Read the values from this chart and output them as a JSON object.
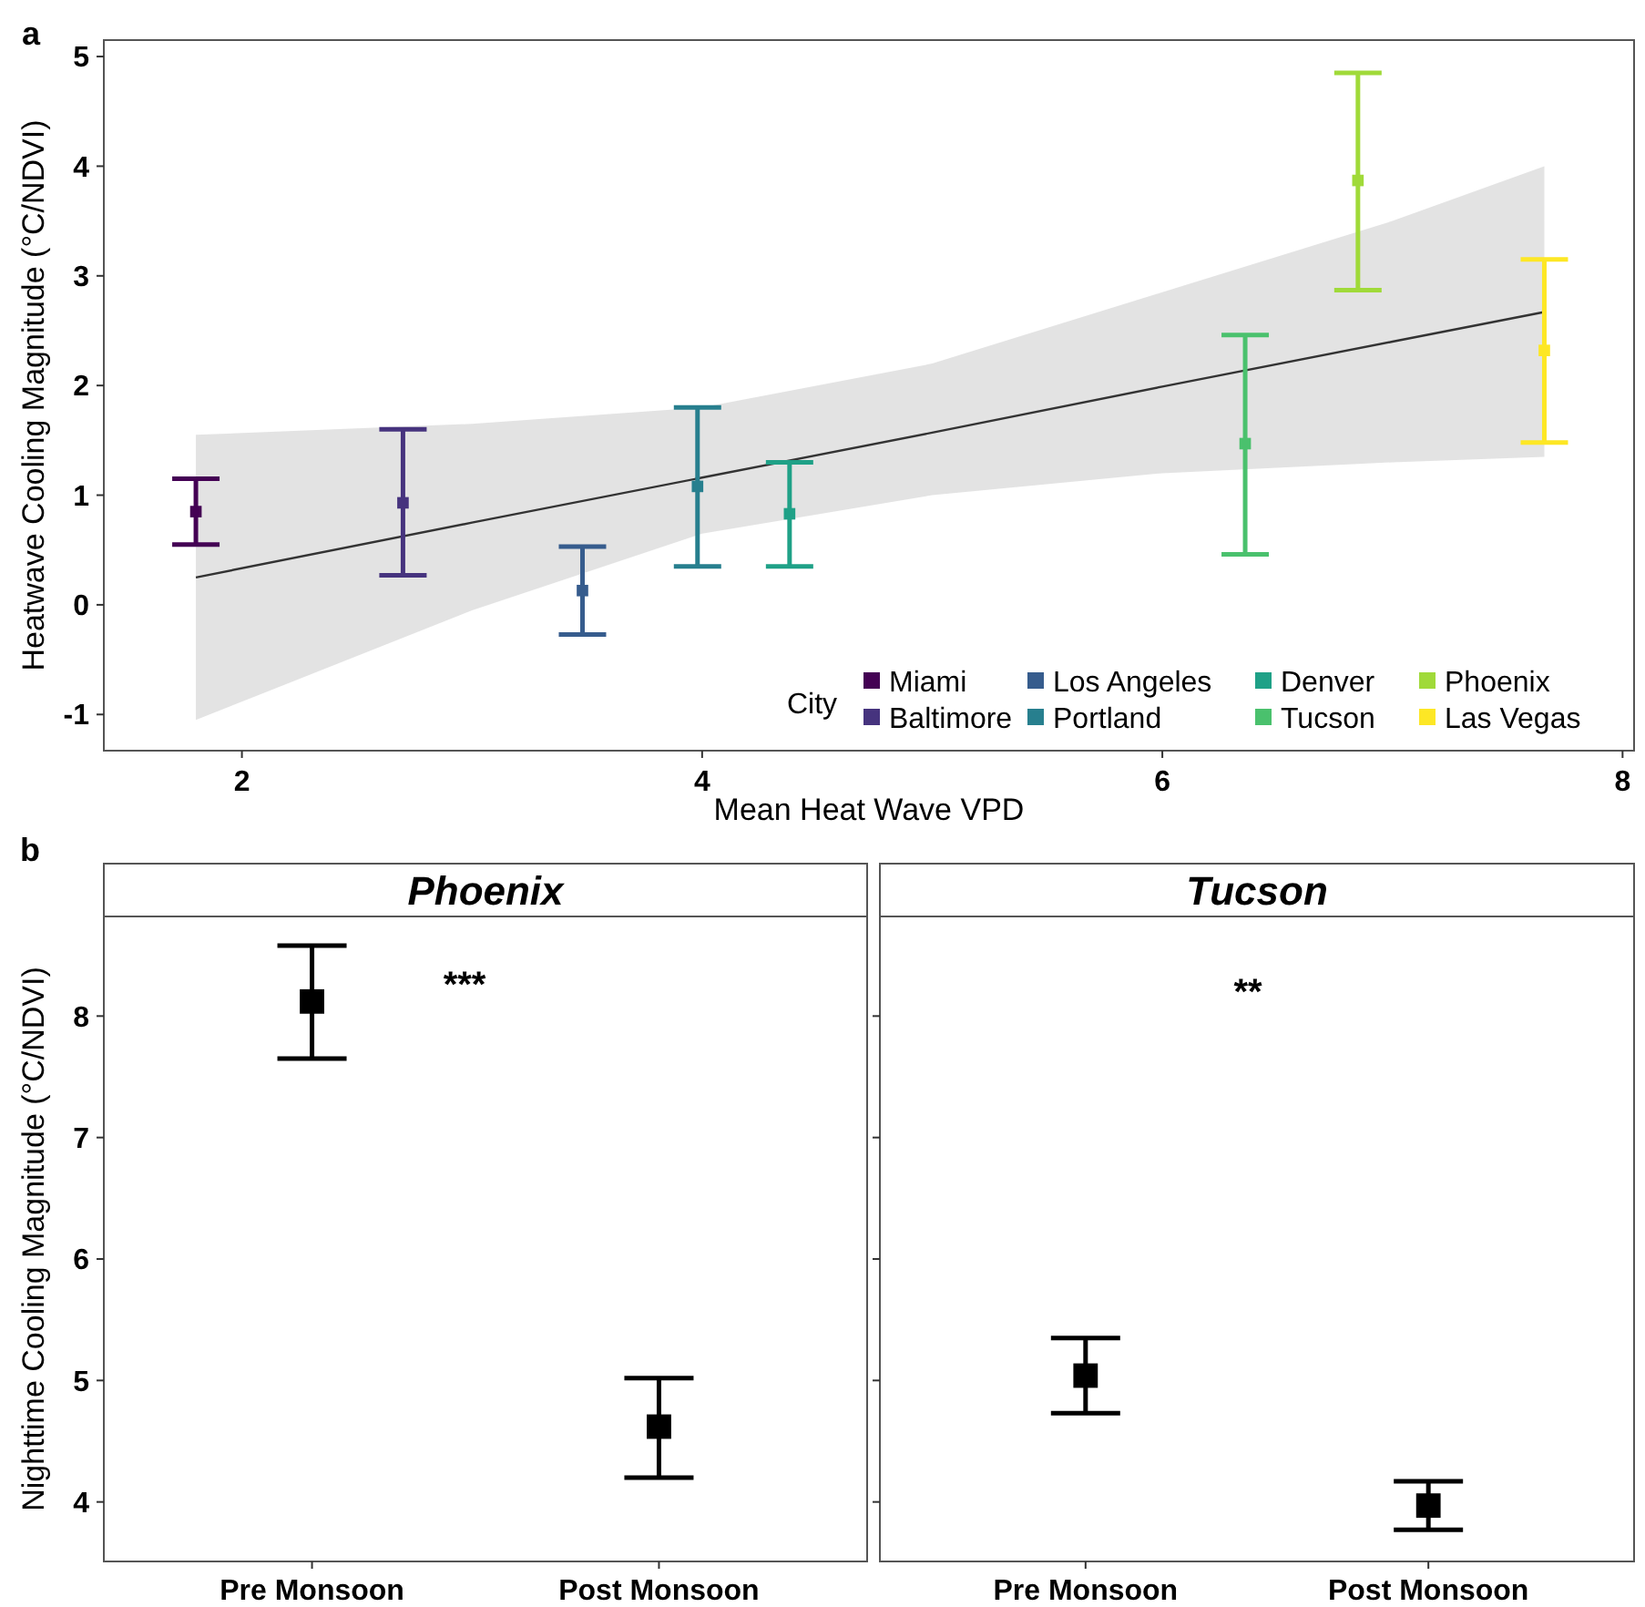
{
  "chart_data": [
    {
      "type": "scatter",
      "xlabel": "Mean Heat Wave VPD",
      "ylabel": "Heatwave Cooling Magnitude (°C/NDVI)",
      "annotations": [
        "a"
      ],
      "legend_title": "City",
      "legend": "bottom right",
      "marker": "square",
      "grid": false,
      "xlim": [
        1.4,
        8.05
      ],
      "ylim": [
        -1.33,
        5.15
      ],
      "xticks": [
        2,
        4,
        6,
        8
      ],
      "yticks": [
        -1,
        0,
        1,
        2,
        3,
        4,
        5
      ],
      "series": [
        {
          "type": "line",
          "marker": "none",
          "color": "#333333",
          "x": [
            1.8,
            3,
            4,
            5,
            6,
            7,
            7.66
          ],
          "values": [
            0.25,
            0.75,
            1.16,
            1.57,
            1.99,
            2.4,
            2.67
          ],
          "lower": [
            -1.05,
            -0.05,
            0.65,
            1.0,
            1.2,
            1.3,
            1.35
          ],
          "upper": [
            1.55,
            1.65,
            1.8,
            2.2,
            2.85,
            3.5,
            4.0
          ]
        },
        {
          "name": "Miami",
          "color": "#440154",
          "x": [
            1.8
          ],
          "values": [
            0.85
          ],
          "errors": [
            [
              0.55,
              1.15
            ]
          ]
        },
        {
          "name": "Baltimore",
          "color": "#46337e",
          "x": [
            2.7
          ],
          "values": [
            0.93
          ],
          "errors": [
            [
              0.27,
              1.6
            ]
          ]
        },
        {
          "name": "Los Angeles",
          "color": "#365c8d",
          "x": [
            3.48
          ],
          "values": [
            0.13
          ],
          "errors": [
            [
              -0.27,
              0.53
            ]
          ]
        },
        {
          "name": "Portland",
          "color": "#277f8e",
          "x": [
            3.98
          ],
          "values": [
            1.08
          ],
          "errors": [
            [
              0.35,
              1.8
            ]
          ]
        },
        {
          "name": "Denver",
          "color": "#1fa187",
          "x": [
            4.38
          ],
          "values": [
            0.83
          ],
          "errors": [
            [
              0.35,
              1.3
            ]
          ]
        },
        {
          "name": "Tucson",
          "color": "#4ac16d",
          "x": [
            6.36
          ],
          "values": [
            1.47
          ],
          "errors": [
            [
              0.46,
              2.46
            ]
          ]
        },
        {
          "name": "Phoenix",
          "color": "#a0da39",
          "x": [
            6.85
          ],
          "values": [
            3.87
          ],
          "errors": [
            [
              2.87,
              4.85
            ]
          ]
        },
        {
          "name": "Las Vegas",
          "color": "#fde725",
          "x": [
            7.66
          ],
          "values": [
            2.32
          ],
          "errors": [
            [
              1.48,
              3.15
            ]
          ]
        }
      ]
    },
    {
      "type": "scatter",
      "title": "Phoenix",
      "ylabel": "Nighttime Cooling Magnitude (°C/NDVI)",
      "annotations": [
        "b",
        "***"
      ],
      "marker": "square",
      "grid": false,
      "categories": [
        "Pre Monsoon",
        "Post Monsoon"
      ],
      "ylim": [
        3.51,
        8.82
      ],
      "yticks": [
        4,
        5,
        6,
        7,
        8
      ],
      "series": [
        {
          "color": "#000000",
          "values": [
            8.12,
            4.62
          ],
          "errors": [
            [
              7.65,
              8.58
            ],
            [
              4.2,
              5.02
            ]
          ]
        }
      ]
    },
    {
      "type": "scatter",
      "title": "Tucson",
      "annotations": [
        "**"
      ],
      "marker": "square",
      "grid": false,
      "tick_labels": "x",
      "categories": [
        "Pre Monsoon",
        "Post Monsoon"
      ],
      "ylim": [
        3.51,
        8.82
      ],
      "yticks": [
        4,
        5,
        6,
        7,
        8
      ],
      "series": [
        {
          "color": "#000000",
          "values": [
            5.04,
            3.97
          ],
          "errors": [
            [
              4.73,
              5.35
            ],
            [
              3.77,
              4.17
            ]
          ]
        }
      ]
    }
  ]
}
